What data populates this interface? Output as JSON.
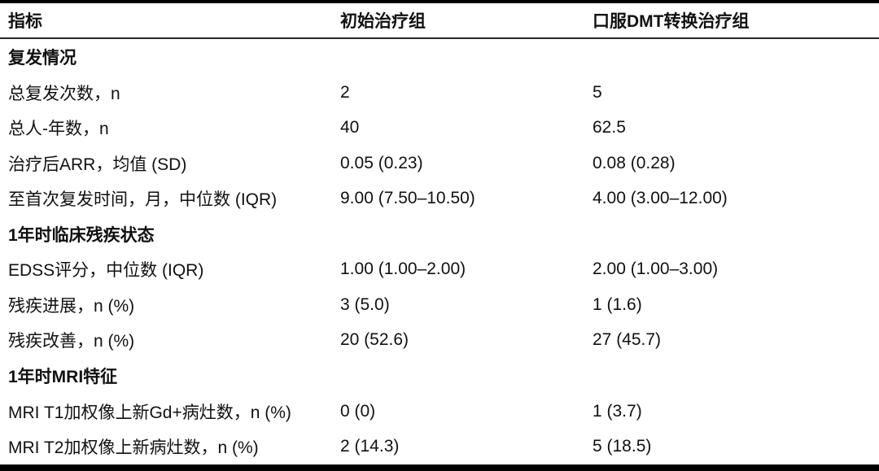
{
  "table": {
    "columns": [
      "指标",
      "初始治疗组",
      "口服DMT转换治疗组"
    ],
    "sections": [
      {
        "title": "复发情况",
        "rows": [
          {
            "label": "总复发次数，n",
            "initial": "2",
            "switch": "5"
          },
          {
            "label": "总人-年数，n",
            "initial": "40",
            "switch": "62.5"
          },
          {
            "label": "治疗后ARR，均值 (SD)",
            "initial": "0.05 (0.23)",
            "switch": "0.08 (0.28)"
          },
          {
            "label": "至首次复发时间，月，中位数 (IQR)",
            "initial": "9.00 (7.50–10.50)",
            "switch": "4.00 (3.00–12.00)"
          }
        ]
      },
      {
        "title": "1年时临床残疾状态",
        "rows": [
          {
            "label": "EDSS评分，中位数 (IQR)",
            "initial": "1.00 (1.00–2.00)",
            "switch": "2.00 (1.00–3.00)"
          },
          {
            "label": "残疾进展，n (%)",
            "initial": "3 (5.0)",
            "switch": "1 (1.6)"
          },
          {
            "label": "残疾改善，n (%)",
            "initial": "20 (52.6)",
            "switch": "27 (45.7)"
          }
        ]
      },
      {
        "title": "1年时MRI特征",
        "rows": [
          {
            "label": "MRI T1加权像上新Gd+病灶数，n (%)",
            "initial": "0 (0)",
            "switch": "1 (3.7)"
          },
          {
            "label": "MRI T2加权像上新病灶数，n (%)",
            "initial": "2 (14.3)",
            "switch": "5 (18.5)"
          }
        ]
      }
    ]
  },
  "colors": {
    "text": "#111111",
    "border_heavy": "#000000",
    "border_light": "#262626",
    "background": "#ffffff"
  }
}
